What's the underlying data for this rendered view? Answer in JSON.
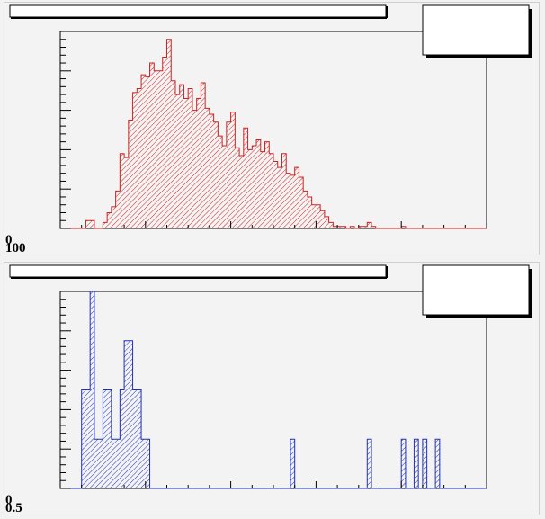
{
  "colors": {
    "canvas": "#f2f2f2",
    "top_series": "#cc2222",
    "bottom_series": "#1f2fb8",
    "frame": "#000000"
  },
  "chart_data": [
    {
      "type": "bar",
      "title": "",
      "stats_box_text": "",
      "hatch": "diagonal",
      "color": "#cc2222",
      "n_bins": 100,
      "ylim": [
        0,
        100
      ],
      "grid": false,
      "y_tick_labels": [
        "0",
        "100"
      ],
      "values": [
        0,
        0,
        0,
        0,
        0,
        0,
        4,
        4,
        0,
        0,
        3,
        8,
        11,
        19,
        38,
        36,
        55,
        69,
        71,
        78,
        77,
        84,
        80,
        80,
        87,
        96,
        75,
        68,
        73,
        66,
        71,
        60,
        66,
        74,
        61,
        58,
        54,
        47,
        42,
        54,
        59,
        41,
        37,
        51,
        40,
        42,
        45,
        39,
        44,
        38,
        34,
        31,
        38,
        28,
        27,
        31,
        26,
        19,
        16,
        12,
        12,
        9,
        6,
        3,
        1,
        1,
        1,
        0,
        1,
        0,
        1,
        1,
        3,
        1,
        0,
        0,
        0,
        0,
        0,
        0,
        1,
        0,
        0,
        0,
        0,
        0,
        0,
        0,
        0,
        0,
        0,
        0,
        0,
        0,
        0,
        0,
        0,
        0,
        0,
        0
      ]
    },
    {
      "type": "bar",
      "title": "",
      "stats_box_text": "",
      "hatch": "diagonal",
      "color": "#1f2fb8",
      "n_bins": 100,
      "ylim": [
        0,
        8
      ],
      "grid": false,
      "y_tick_labels": [
        "0",
        "0.5"
      ],
      "values": [
        0,
        0,
        0,
        0,
        0,
        4,
        4,
        8,
        2,
        2,
        4,
        4,
        2,
        2,
        4,
        6,
        6,
        4,
        4,
        2,
        2,
        0,
        0,
        0,
        0,
        0,
        0,
        0,
        0,
        0,
        0,
        0,
        0,
        0,
        0,
        0,
        0,
        0,
        0,
        0,
        0,
        0,
        0,
        0,
        0,
        0,
        0,
        0,
        0,
        0,
        0,
        0,
        0,
        0,
        2,
        0,
        0,
        0,
        0,
        0,
        0,
        0,
        0,
        0,
        0,
        0,
        0,
        0,
        0,
        0,
        0,
        0,
        2,
        0,
        0,
        0,
        0,
        0,
        0,
        0,
        2,
        0,
        0,
        2,
        0,
        2,
        0,
        0,
        2,
        0,
        0,
        0,
        0,
        0,
        0,
        0,
        0,
        0,
        0,
        0
      ]
    }
  ]
}
